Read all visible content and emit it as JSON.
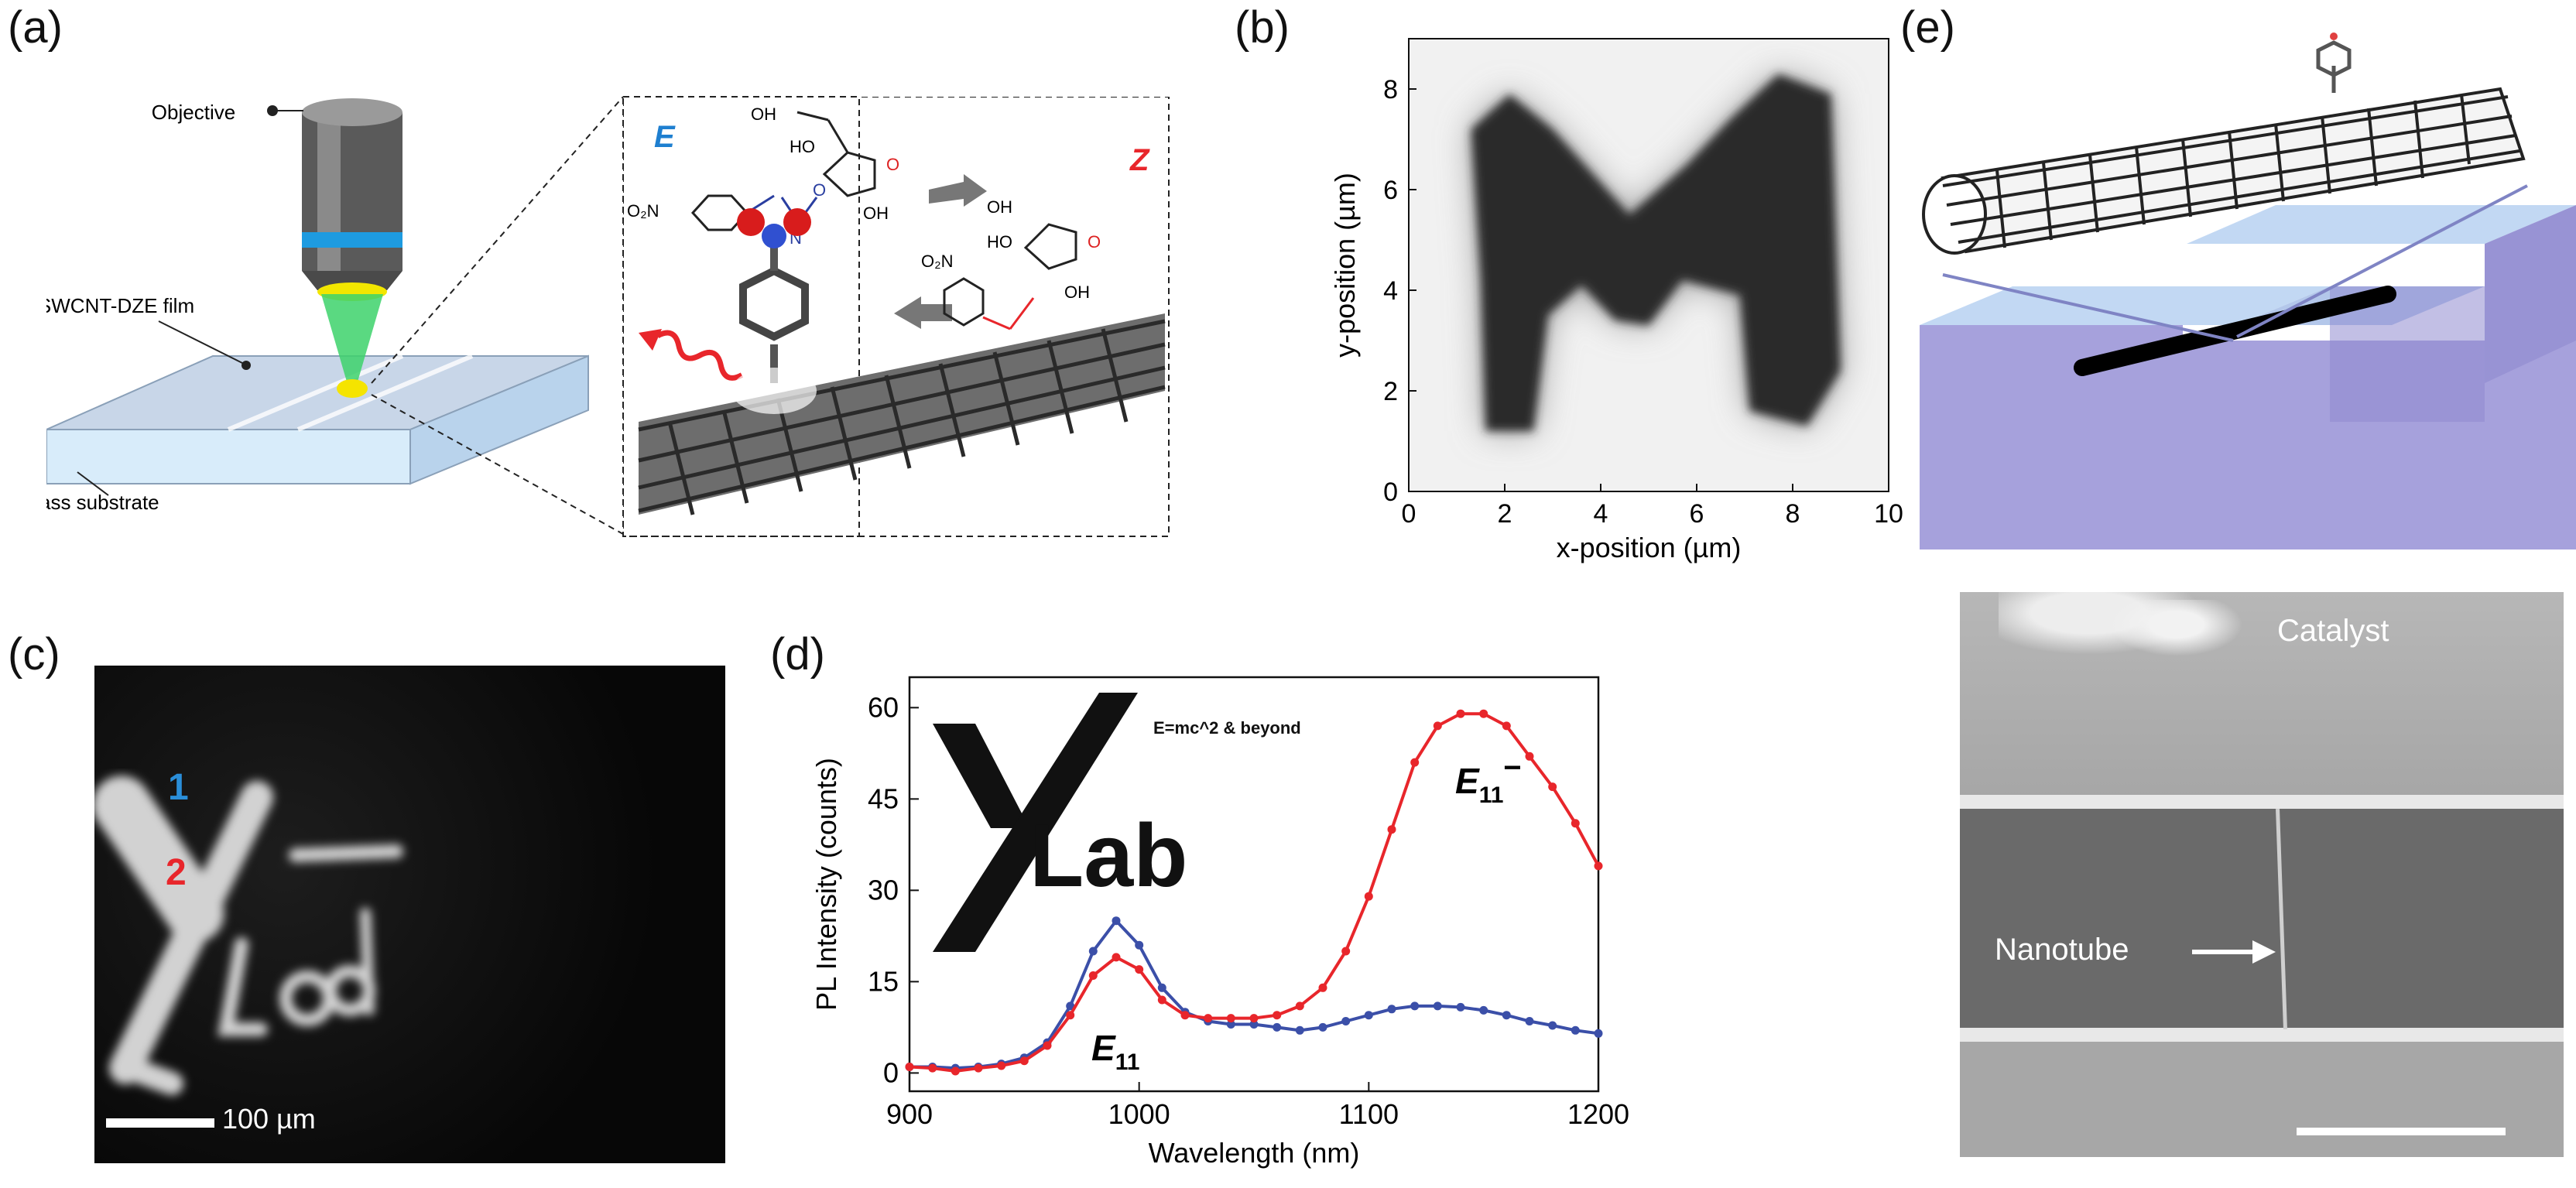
{
  "panels": {
    "a": {
      "label": "(a)",
      "objective": "Objective",
      "film": "SWCNT-DZE film",
      "substrate": "Glass substrate",
      "isomer_e": "E",
      "isomer_z": "Z",
      "no2": "O₂N",
      "oh": "OH",
      "ho": "HO",
      "o": "O",
      "n": "N"
    },
    "b": {
      "label": "(b)"
    },
    "c": {
      "label": "(c)",
      "marker1": "1",
      "marker2": "2",
      "scalebar": "100 µm"
    },
    "d": {
      "label": "(d)",
      "logo_y": "Y",
      "logo_lab": "Lab",
      "logo_tag": "E=mc^2 & beyond",
      "peak_e11": "E",
      "peak_e11_sub": "11",
      "peak_e11m": "E",
      "peak_e11m_sub": "11",
      "peak_e11m_sup": "−"
    },
    "e": {
      "label": "(e)",
      "catalyst": "Catalyst",
      "nanotube": "Nanotube"
    }
  },
  "colors": {
    "blue_series": "#3b4fa8",
    "red_series": "#e8262b",
    "substrate": "#a9a6dc",
    "glass": "#cfe2f3"
  },
  "chart_data": [
    {
      "type": "heatmap",
      "panel": "b",
      "description_text": "",
      "xlabel": "x-position (µm)",
      "ylabel": "y-position (µm)",
      "xlim": [
        0,
        10
      ],
      "ylim": [
        0,
        9
      ],
      "xticks": [
        "0",
        "2",
        "4",
        "6",
        "8",
        "10"
      ],
      "yticks": [
        "0",
        "2",
        "4",
        "6",
        "8"
      ],
      "xtick_values": [
        0,
        2,
        4,
        6,
        8,
        10
      ],
      "ytick_values": [
        0,
        2,
        4,
        6,
        8
      ],
      "pattern_polygon_um": [
        [
          1.6,
          1.2
        ],
        [
          2.6,
          1.2
        ],
        [
          2.9,
          3.5
        ],
        [
          3.6,
          4.1
        ],
        [
          4.3,
          3.4
        ],
        [
          5.0,
          3.3
        ],
        [
          5.7,
          4.2
        ],
        [
          6.9,
          3.9
        ],
        [
          7.1,
          1.6
        ],
        [
          8.3,
          1.3
        ],
        [
          9.0,
          2.4
        ],
        [
          8.8,
          7.9
        ],
        [
          7.7,
          8.3
        ],
        [
          6.7,
          7.4
        ],
        [
          5.8,
          6.5
        ],
        [
          4.6,
          5.5
        ],
        [
          3.0,
          7.2
        ],
        [
          2.1,
          7.9
        ],
        [
          1.3,
          7.2
        ],
        [
          1.5,
          4.2
        ]
      ]
    },
    {
      "type": "line",
      "panel": "d",
      "xlabel": "Wavelength (nm)",
      "ylabel": "PL Intensity (counts)",
      "xlim": [
        900,
        1200
      ],
      "ylim": [
        -3,
        65
      ],
      "xticks": [
        "900",
        "1000",
        "1100",
        "1200"
      ],
      "yticks": [
        "0",
        "15",
        "30",
        "45",
        "60"
      ],
      "xtick_values": [
        900,
        1000,
        1100,
        1200
      ],
      "ytick_values": [
        0,
        15,
        30,
        45,
        60
      ],
      "series": [
        {
          "name": "1",
          "color": "#3b4fa8",
          "x": [
            900,
            910,
            920,
            930,
            940,
            950,
            960,
            970,
            980,
            990,
            1000,
            1010,
            1020,
            1030,
            1040,
            1050,
            1060,
            1070,
            1080,
            1090,
            1100,
            1110,
            1120,
            1130,
            1140,
            1150,
            1160,
            1170,
            1180,
            1190,
            1200
          ],
          "y": [
            1,
            1,
            0.8,
            1,
            1.5,
            2.5,
            5,
            11,
            20,
            25,
            21,
            14,
            10,
            8.5,
            8,
            8,
            7.5,
            7,
            7.5,
            8.5,
            9.5,
            10.5,
            11,
            11,
            10.8,
            10.3,
            9.5,
            8.5,
            7.8,
            7,
            6.5
          ]
        },
        {
          "name": "2",
          "color": "#e8262b",
          "x": [
            900,
            910,
            920,
            930,
            940,
            950,
            960,
            970,
            980,
            990,
            1000,
            1010,
            1020,
            1030,
            1040,
            1050,
            1060,
            1070,
            1080,
            1090,
            1100,
            1110,
            1120,
            1130,
            1140,
            1150,
            1160,
            1170,
            1180,
            1190,
            1200
          ],
          "y": [
            1,
            0.8,
            0.3,
            0.8,
            1.2,
            2,
            4.5,
            9.5,
            16,
            19,
            17,
            12,
            9.5,
            9,
            9,
            9,
            9.5,
            11,
            14,
            20,
            29,
            40,
            51,
            57,
            59,
            59,
            57,
            52,
            47,
            41,
            34
          ]
        }
      ]
    }
  ]
}
